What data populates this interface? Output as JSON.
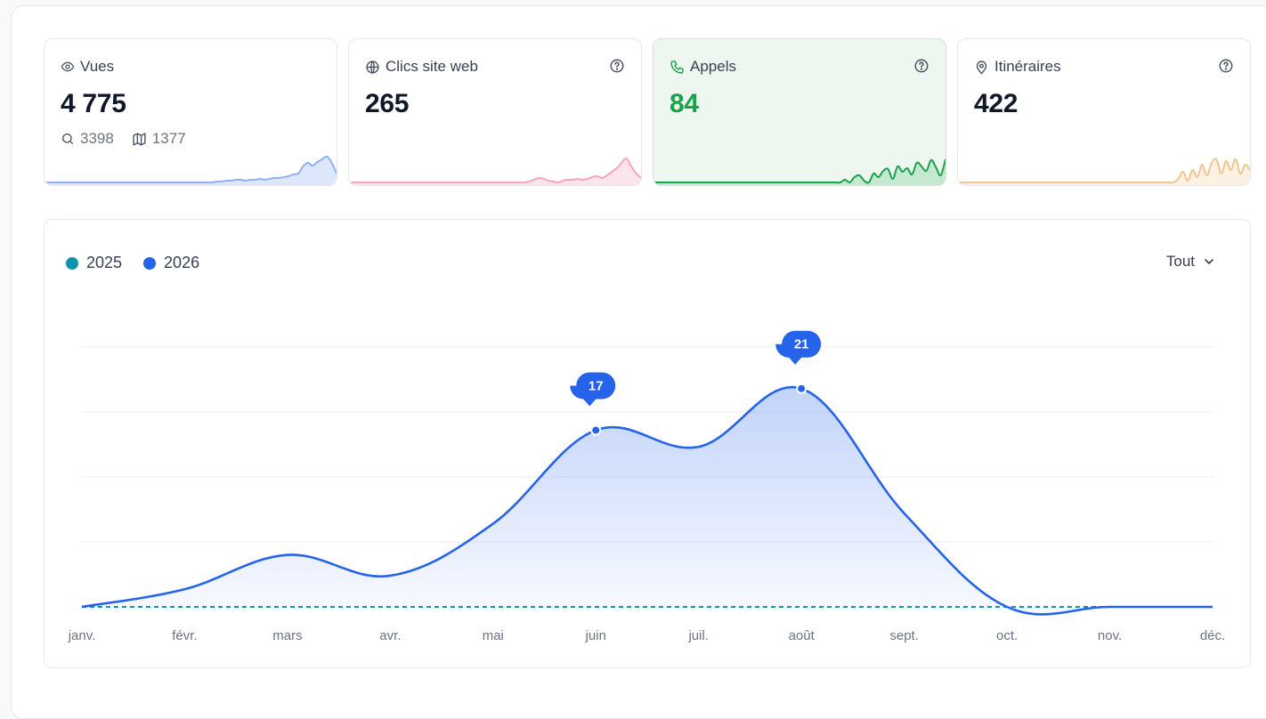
{
  "cards": [
    {
      "id": "vues",
      "label": "Vues",
      "value": "4 775",
      "icon": "eye-icon",
      "help": false,
      "sub": {
        "search": "3398",
        "map": "1377"
      },
      "color": "#8fb1f0",
      "fill": "#dce7fb",
      "spark": [
        0,
        0,
        0,
        0,
        0,
        0,
        0,
        0,
        0,
        0,
        0,
        0,
        0,
        0,
        0,
        0,
        0,
        0,
        0,
        0,
        0,
        0,
        0,
        0,
        0,
        0,
        0,
        0,
        0,
        0,
        0,
        0,
        0,
        0,
        0,
        0,
        1,
        1,
        2,
        2,
        3,
        3,
        2,
        3,
        3,
        4,
        3,
        4,
        5,
        5,
        6,
        7,
        9,
        10,
        18,
        22,
        19,
        23,
        26,
        29,
        22,
        10
      ]
    },
    {
      "id": "clics",
      "label": "Clics site web",
      "value": "265",
      "icon": "globe-icon",
      "help": true,
      "color": "#f4a6c0",
      "fill": "#fce4ec",
      "spark": [
        0,
        0,
        0,
        0,
        0,
        0,
        0,
        0,
        0,
        0,
        0,
        0,
        0,
        0,
        0,
        0,
        0,
        0,
        0,
        0,
        0,
        0,
        0,
        0,
        0,
        0,
        0,
        0,
        0,
        0,
        0,
        0,
        0,
        0,
        0,
        0,
        0,
        1,
        3,
        5,
        4,
        2,
        1,
        0,
        2,
        3,
        3,
        4,
        3,
        4,
        6,
        7,
        5,
        8,
        12,
        16,
        22,
        27,
        18,
        10,
        5
      ]
    },
    {
      "id": "appels",
      "label": "Appels",
      "value": "84",
      "icon": "phone-icon",
      "help": true,
      "active": true,
      "color": "#16a34a",
      "fill": "#c5e8d0",
      "spark": [
        0,
        0,
        0,
        0,
        0,
        0,
        0,
        0,
        0,
        0,
        0,
        0,
        0,
        0,
        0,
        0,
        0,
        0,
        0,
        0,
        0,
        0,
        0,
        0,
        0,
        0,
        0,
        0,
        0,
        0,
        0,
        0,
        0,
        0,
        0,
        0,
        0,
        0,
        0,
        0,
        3,
        0,
        6,
        8,
        2,
        0,
        10,
        6,
        13,
        15,
        4,
        18,
        12,
        16,
        9,
        22,
        18,
        13,
        25,
        17,
        8,
        26
      ]
    },
    {
      "id": "itineraires",
      "label": "Itinéraires",
      "value": "422",
      "icon": "map-pin-icon",
      "help": true,
      "color": "#f2c58e",
      "fill": "#fdf1e3",
      "spark": [
        0,
        0,
        0,
        0,
        0,
        0,
        0,
        0,
        0,
        0,
        0,
        0,
        0,
        0,
        0,
        0,
        0,
        0,
        0,
        0,
        0,
        0,
        0,
        0,
        0,
        0,
        0,
        0,
        0,
        0,
        0,
        0,
        0,
        0,
        0,
        0,
        0,
        0,
        0,
        0,
        0,
        0,
        0,
        0,
        0,
        0,
        4,
        12,
        2,
        14,
        6,
        20,
        8,
        22,
        26,
        10,
        24,
        14,
        26,
        10,
        20,
        14
      ]
    }
  ],
  "legend": [
    {
      "label": "2025",
      "color": "#0e94ad"
    },
    {
      "label": "2026",
      "color": "#2563eb"
    }
  ],
  "filter": {
    "label": "Tout"
  },
  "chart_data": {
    "type": "area",
    "categories": [
      "janv.",
      "févr.",
      "mars",
      "avr.",
      "mai",
      "juin",
      "juil.",
      "août",
      "sept.",
      "oct.",
      "nov.",
      "déc."
    ],
    "series": [
      {
        "name": "2025",
        "values": [
          0,
          0,
          0,
          0,
          0,
          0,
          0,
          0,
          0,
          0,
          0,
          0
        ],
        "color": "#0e94ad",
        "style": "dashed"
      },
      {
        "name": "2026",
        "values": [
          0,
          1.7,
          5,
          3,
          8,
          17,
          15.4,
          21,
          9,
          0,
          0,
          0
        ],
        "color": "#2563eb",
        "style": "solid-area"
      }
    ],
    "annotations": [
      {
        "category": "juin",
        "value": 17,
        "label": "17"
      },
      {
        "category": "août",
        "value": 21,
        "label": "21"
      }
    ],
    "ylim": [
      0,
      25
    ],
    "grid": true,
    "legend_position": "top-left"
  }
}
